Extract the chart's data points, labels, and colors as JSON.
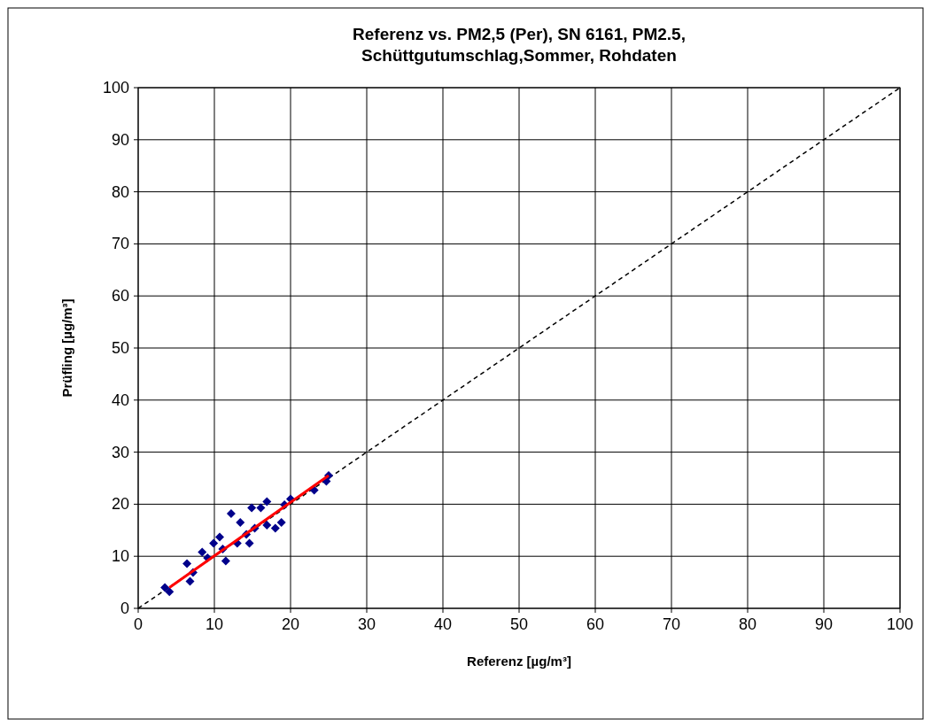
{
  "chart_data": {
    "type": "scatter",
    "title": "Referenz vs. PM2,5 (Per), SN 6161, PM2.5,\nSchüttgutumschlag,Sommer, Rohdaten",
    "xlabel": "Referenz [µg/m³]",
    "ylabel": "Prüfling [µg/m³]",
    "xlim": [
      0,
      100
    ],
    "ylim": [
      0,
      100
    ],
    "xticks": [
      0,
      10,
      20,
      30,
      40,
      50,
      60,
      70,
      80,
      90,
      100
    ],
    "yticks": [
      0,
      10,
      20,
      30,
      40,
      50,
      60,
      70,
      80,
      90,
      100
    ],
    "grid": true,
    "series": [
      {
        "type": "line",
        "color": "#000000",
        "line_style": "dashed",
        "marker": "none",
        "x": [
          0,
          100
        ],
        "values": [
          0,
          100
        ]
      },
      {
        "color": "#00008b",
        "marker": "diamond",
        "x": [
          3.5,
          4.1,
          6.4,
          6.8,
          7.2,
          8.4,
          9.1,
          9.9,
          10.7,
          11.5,
          11.1,
          12.2,
          13.4,
          13.0,
          14.6,
          14.2,
          14.9,
          16.1,
          16.9,
          16.9,
          18.0,
          18.8,
          15.3,
          19.2,
          20.0,
          23.1,
          24.7,
          25.0
        ],
        "values": [
          4.0,
          3.2,
          8.6,
          5.2,
          6.9,
          10.8,
          9.7,
          12.5,
          13.7,
          9.1,
          11.4,
          18.2,
          16.5,
          12.5,
          12.5,
          14.2,
          19.3,
          19.3,
          20.5,
          16.0,
          15.4,
          16.5,
          15.4,
          19.9,
          21.0,
          22.7,
          24.4,
          25.5
        ]
      },
      {
        "type": "line",
        "color": "#ff0000",
        "line_style": "solid",
        "marker": "none",
        "x": [
          4.1,
          25.0
        ],
        "values": [
          4.0,
          25.5
        ]
      }
    ]
  }
}
